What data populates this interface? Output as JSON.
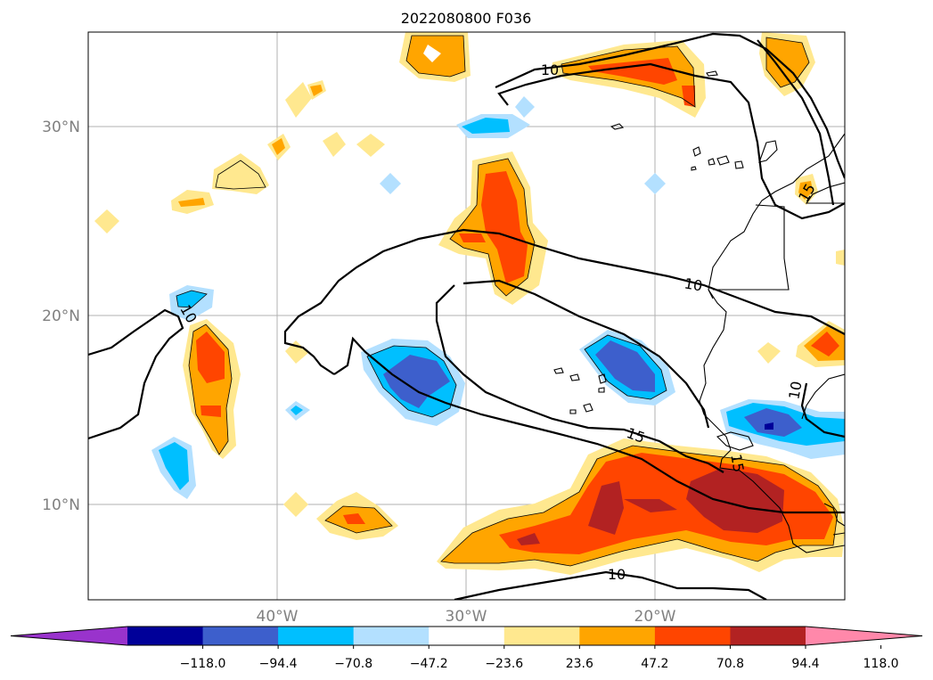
{
  "title": "2022080800 F036",
  "map": {
    "lat_labels": [
      "30°N",
      "20°N",
      "10°N"
    ],
    "lon_labels": [
      "40°W",
      "30°W",
      "20°W"
    ],
    "contour_labels": [
      "10",
      "10",
      "15",
      "10",
      "10",
      "15",
      "10",
      "15"
    ]
  },
  "colorbar": {
    "tick_labels": [
      "−118.0",
      "−94.4",
      "−70.8",
      "−47.2",
      "−23.6",
      "23.6",
      "47.2",
      "70.8",
      "94.4",
      "118.0"
    ],
    "colors": [
      "#9933cc",
      "#000099",
      "#3d5fcc",
      "#00bfff",
      "#b3e0ff",
      "#ffffff",
      "#ffe88f",
      "#ffa500",
      "#ff4500",
      "#b22222",
      "#ff88aa"
    ]
  }
}
